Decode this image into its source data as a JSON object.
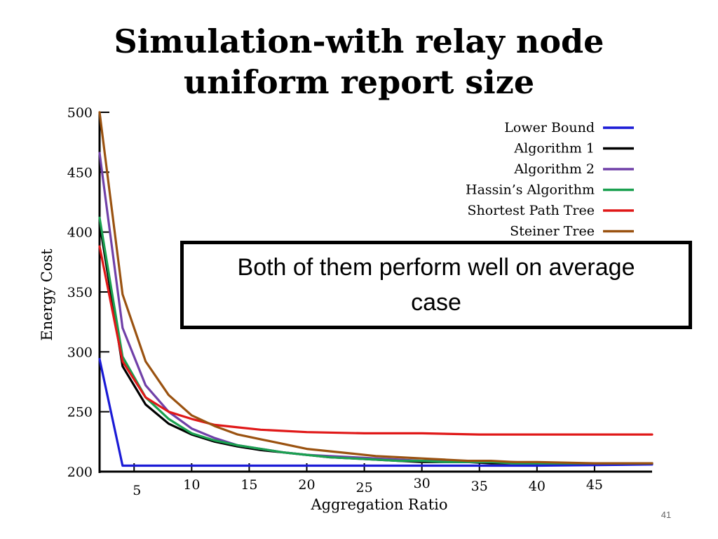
{
  "slide": {
    "title_line1": "Simulation-with relay node",
    "title_line2": "uniform report size",
    "callout": "Both of them perform well on average case",
    "page_number": "41"
  },
  "chart_data": {
    "type": "line",
    "xlabel": "Aggregation Ratio",
    "ylabel": "Energy Cost",
    "xlim": [
      2,
      50
    ],
    "ylim": [
      200,
      500
    ],
    "x_ticks": [
      5,
      10,
      15,
      20,
      25,
      30,
      35,
      40,
      45
    ],
    "y_ticks": [
      200,
      250,
      300,
      350,
      400,
      450,
      500
    ],
    "legend_position": "top-right",
    "grid": false,
    "series": [
      {
        "name": "Lower Bound",
        "color": "#1a1ad6",
        "x": [
          2,
          4,
          10,
          20,
          30,
          40,
          50
        ],
        "y": [
          294,
          205,
          205,
          205,
          205,
          205,
          206
        ]
      },
      {
        "name": "Algorithm 1",
        "color": "#000000",
        "x": [
          2,
          4,
          6,
          8,
          10,
          12,
          14,
          16,
          18,
          20,
          22,
          24,
          26,
          28,
          30,
          32,
          34,
          36,
          38,
          40,
          45,
          50
        ],
        "y": [
          408,
          288,
          256,
          240,
          231,
          225,
          221,
          218,
          216,
          214,
          212,
          211,
          210,
          209,
          208,
          208,
          208,
          207,
          207,
          207,
          207,
          207
        ]
      },
      {
        "name": "Algorithm 2",
        "color": "#7040a8",
        "x": [
          2,
          4,
          6,
          8,
          10,
          12,
          14,
          16,
          18,
          20,
          22,
          24,
          26,
          28,
          30,
          32,
          34,
          36,
          38,
          40,
          45,
          50
        ],
        "y": [
          466,
          320,
          272,
          250,
          236,
          228,
          222,
          219,
          216,
          214,
          213,
          212,
          211,
          210,
          209,
          209,
          208,
          208,
          208,
          207,
          207,
          207
        ]
      },
      {
        "name": "Hassin’s Algorithm",
        "color": "#1aa050",
        "x": [
          2,
          4,
          6,
          8,
          10,
          12,
          14,
          16,
          18,
          20,
          22,
          24,
          26,
          28,
          30,
          32,
          34,
          36,
          38,
          40,
          45,
          50
        ],
        "y": [
          412,
          296,
          262,
          244,
          232,
          226,
          222,
          219,
          216,
          214,
          212,
          211,
          210,
          209,
          209,
          208,
          208,
          208,
          207,
          207,
          207,
          207
        ]
      },
      {
        "name": "Shortest Path Tree",
        "color": "#e01818",
        "x": [
          2,
          4,
          6,
          8,
          10,
          12,
          14,
          16,
          18,
          20,
          25,
          30,
          35,
          40,
          45,
          50
        ],
        "y": [
          388,
          292,
          262,
          250,
          244,
          239,
          237,
          235,
          234,
          233,
          232,
          232,
          231,
          231,
          231,
          231
        ]
      },
      {
        "name": "Steiner Tree",
        "color": "#9a5210",
        "x": [
          2,
          4,
          6,
          8,
          10,
          12,
          14,
          16,
          18,
          20,
          22,
          24,
          26,
          28,
          30,
          32,
          34,
          36,
          38,
          40,
          45,
          50
        ],
        "y": [
          500,
          348,
          292,
          264,
          247,
          238,
          231,
          227,
          223,
          219,
          217,
          215,
          213,
          212,
          211,
          210,
          209,
          209,
          208,
          208,
          207,
          207
        ]
      }
    ]
  }
}
